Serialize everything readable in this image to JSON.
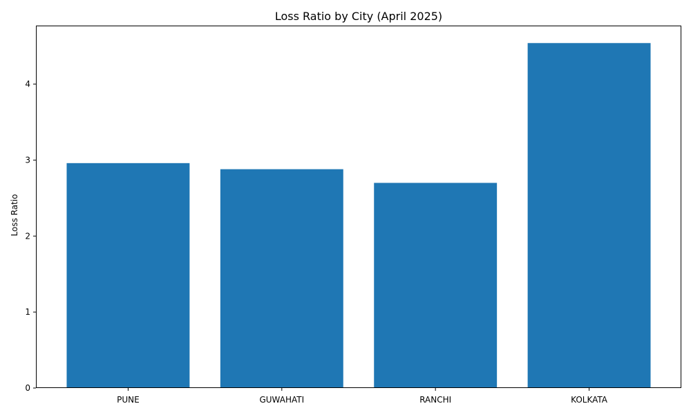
{
  "chart_data": {
    "type": "bar",
    "title": "Loss Ratio by City (April 2025)",
    "xlabel": "",
    "ylabel": "Loss Ratio",
    "categories": [
      "PUNE",
      "GUWAHATI",
      "RANCHI",
      "KOLKATA"
    ],
    "values": [
      2.96,
      2.88,
      2.7,
      4.54
    ],
    "ylim": [
      0,
      4.77
    ],
    "yticks": [
      0,
      1,
      2,
      3,
      4
    ],
    "grid": false,
    "bar_color": "#1f77b4"
  }
}
